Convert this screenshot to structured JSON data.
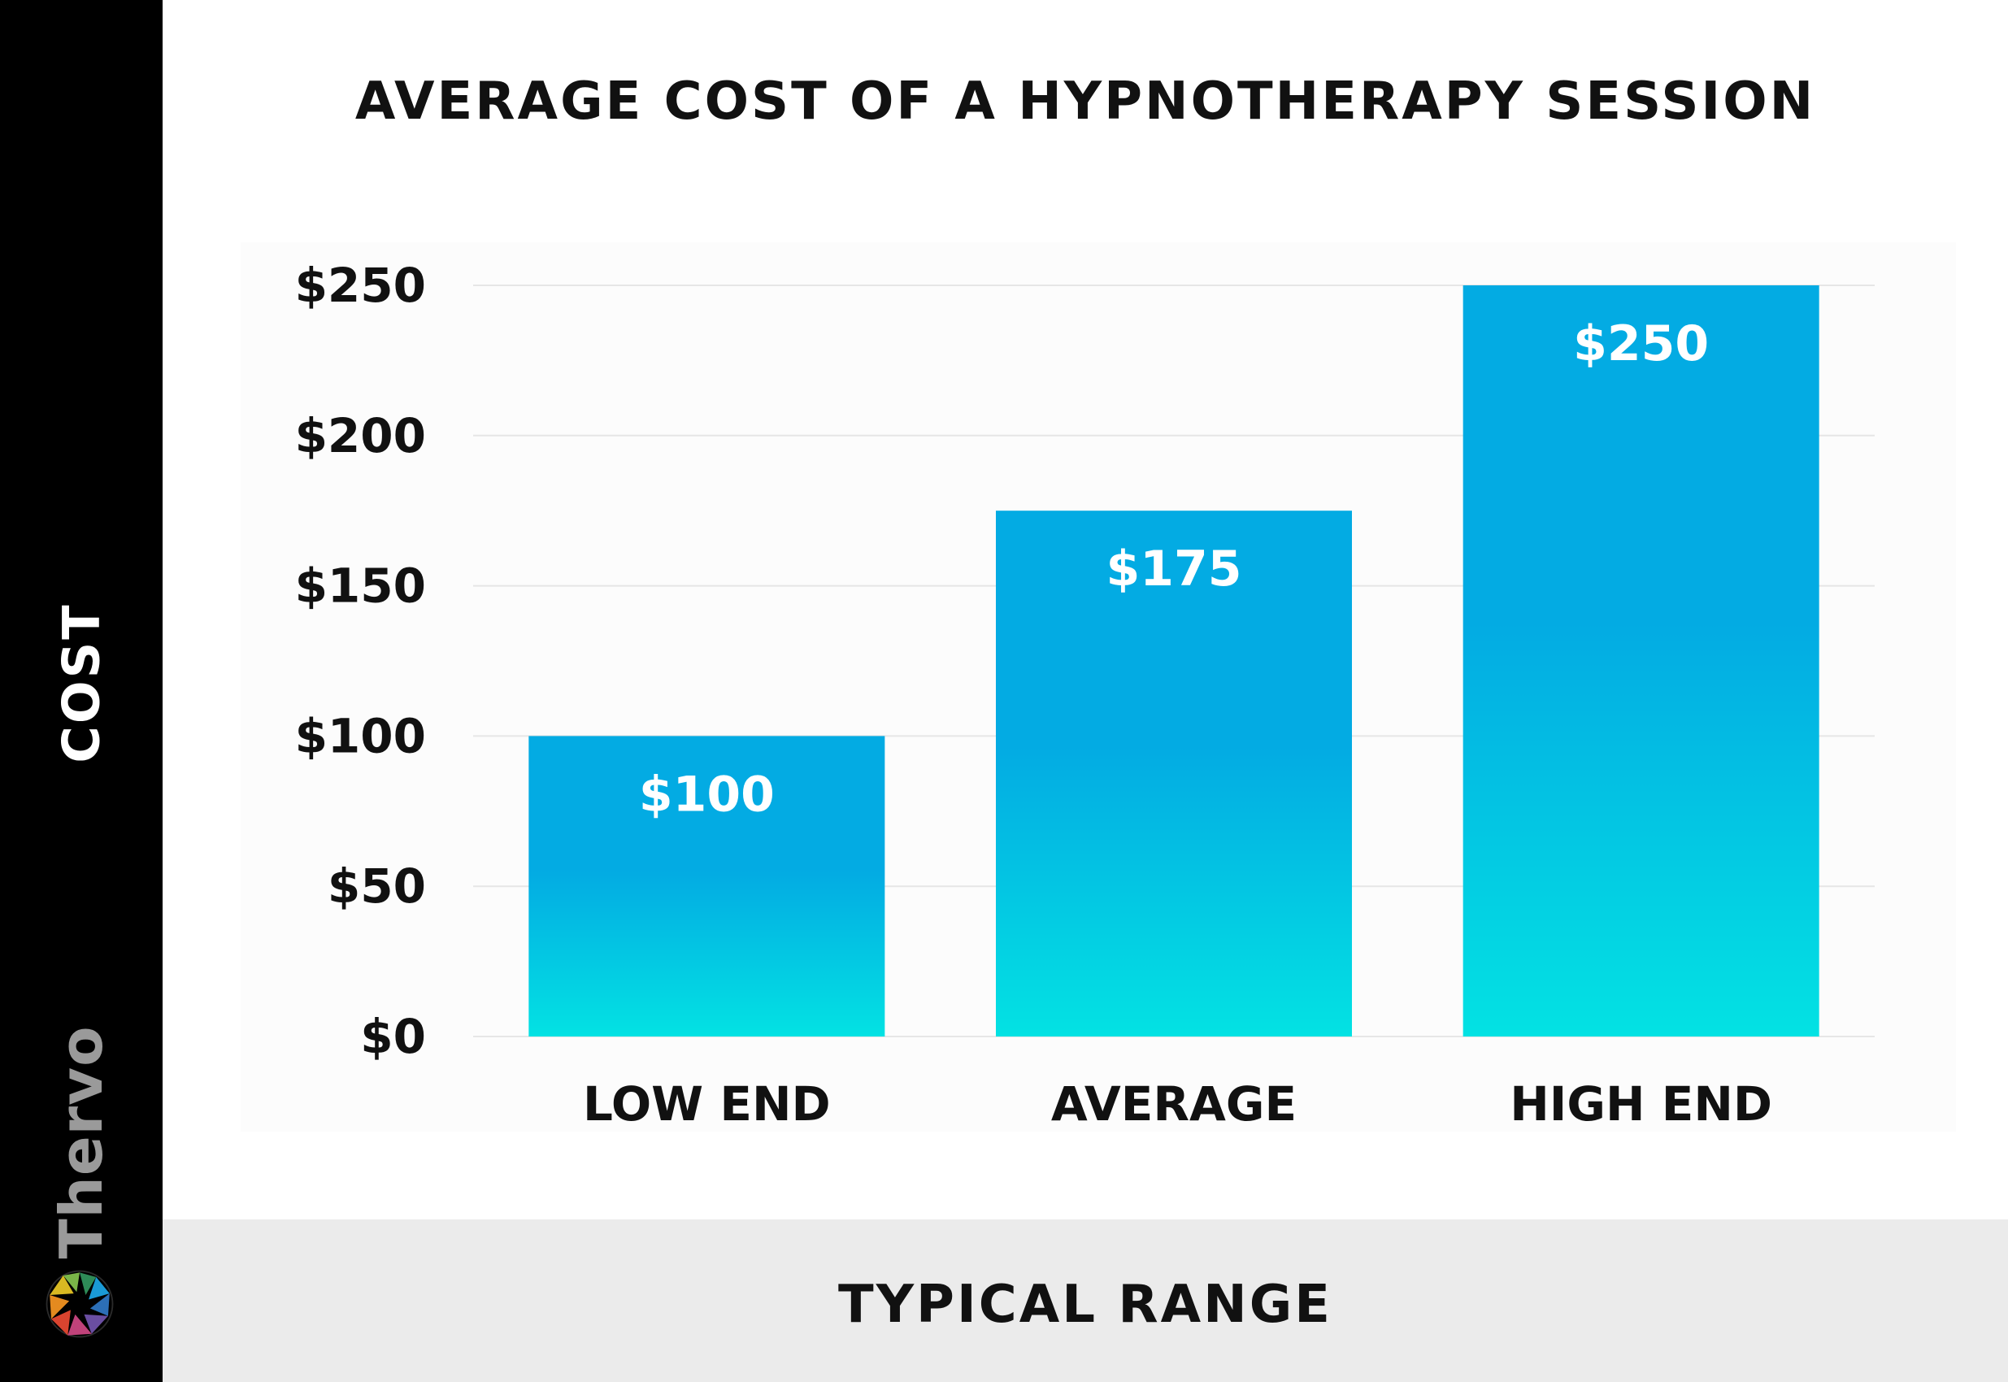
{
  "brand": {
    "name": "Thervo"
  },
  "chart_data": {
    "type": "bar",
    "title": "AVERAGE COST OF A HYPNOTHERAPY SESSION",
    "xlabel": "TYPICAL RANGE",
    "ylabel": "COST",
    "categories": [
      "LOW END",
      "AVERAGE",
      "HIGH END"
    ],
    "values": [
      100,
      175,
      250
    ],
    "value_labels": [
      "$100",
      "$175",
      "$250"
    ],
    "yticks": [
      0,
      50,
      100,
      150,
      200,
      250
    ],
    "ytick_labels": [
      "$0",
      "$50",
      "$100",
      "$150",
      "$200",
      "$250"
    ],
    "ylim": [
      0,
      250
    ],
    "grid": true,
    "colors": {
      "bar_top": "#03abe3",
      "bar_bottom": "#03e2e3",
      "grid": "#e6e6e6"
    }
  }
}
